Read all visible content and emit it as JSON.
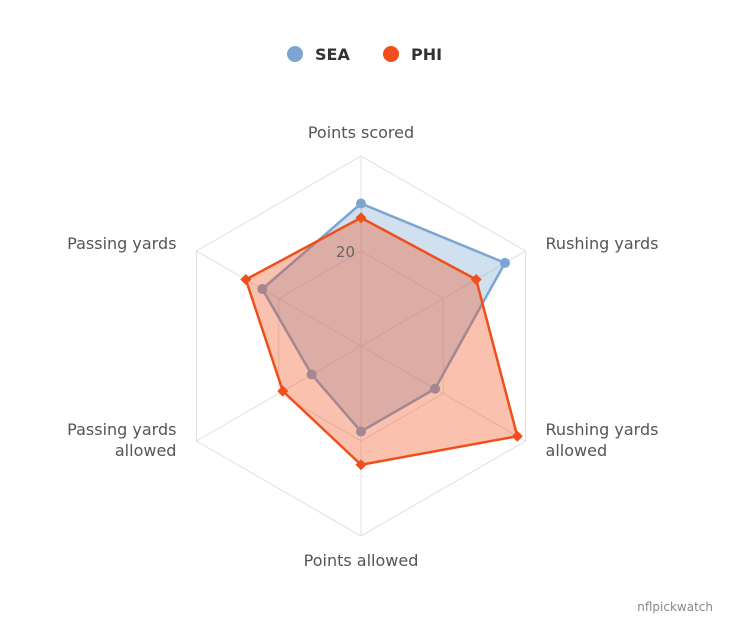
{
  "chart_data": {
    "type": "radar",
    "axes": [
      "Points scored",
      "Rushing yards",
      "Rushing yards allowed",
      "Points allowed",
      "Passing yards allowed",
      "Passing yards"
    ],
    "axis_label_lines": [
      [
        "Points scored"
      ],
      [
        "Rushing yards"
      ],
      [
        "Rushing yards",
        "allowed"
      ],
      [
        "Points allowed"
      ],
      [
        "Passing yards",
        "allowed"
      ],
      [
        "Passing yards"
      ]
    ],
    "rmax": 40,
    "gridlines": [
      20,
      40
    ],
    "tick_labels": [
      "20"
    ],
    "legend_position": "top-center",
    "series": [
      {
        "name": "SEA",
        "color": "#7ca6d0",
        "marker": "circle",
        "values": [
          30,
          35,
          18,
          18,
          12,
          24
        ]
      },
      {
        "name": "PHI",
        "color": "#f04e1a",
        "marker": "diamond",
        "values": [
          27,
          28,
          38,
          25,
          19,
          28
        ]
      }
    ]
  },
  "credit": "nflpickwatch"
}
